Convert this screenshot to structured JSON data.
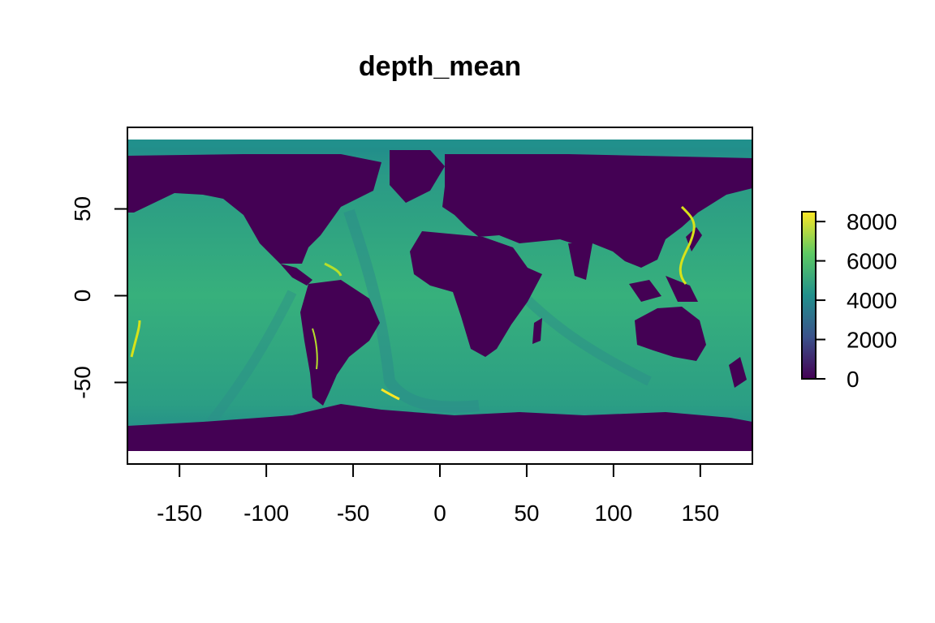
{
  "map": {
    "title": "depth_mean",
    "x_axis": {
      "range": [
        -180,
        180
      ],
      "ticks": [
        -150,
        -100,
        -50,
        0,
        50,
        100,
        150
      ]
    },
    "y_axis": {
      "range": [
        -97,
        97
      ],
      "ticks": [
        -50,
        0,
        50
      ]
    },
    "raster_extent": {
      "lon": [
        -180,
        180
      ],
      "lat": [
        -90,
        90
      ]
    },
    "legend": {
      "type": "colorbar",
      "placement": "right",
      "range": [
        0,
        8500
      ],
      "ticks": [
        0,
        2000,
        4000,
        6000,
        8000
      ],
      "palette": "viridis",
      "colors": [
        "#440154",
        "#3b528b",
        "#21908c",
        "#5dc963",
        "#fde725"
      ]
    },
    "colors": {
      "land": "#440154",
      "shelf": "#3b6f8e",
      "ocean": "#2aa382",
      "deep": "#4fc07a",
      "trench": "#d8e219",
      "arctic": "#1f8a8c"
    }
  }
}
